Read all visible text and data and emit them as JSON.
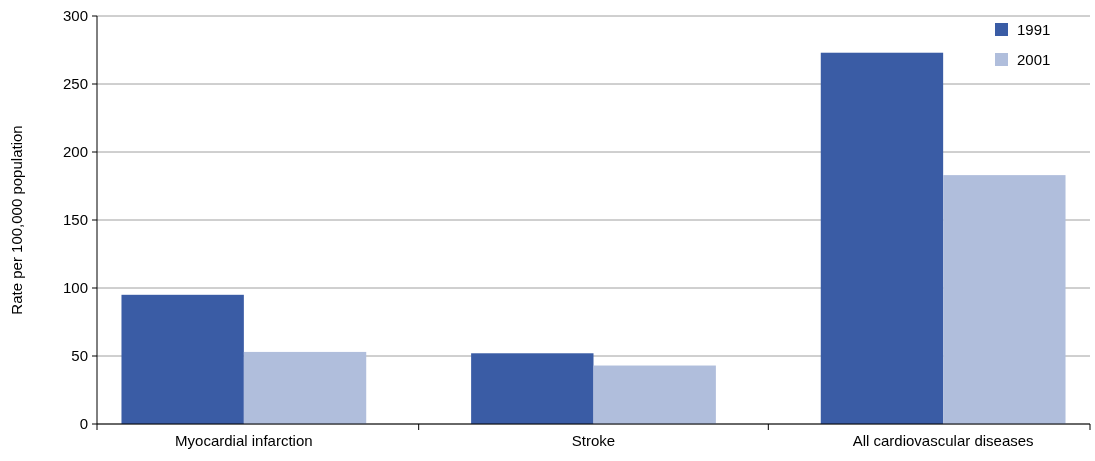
{
  "chart_data": {
    "type": "bar",
    "ylabel": "Rate per 100,000 population",
    "categories": [
      "Myocardial infarction",
      "Stroke",
      "All cardiovascular diseases"
    ],
    "series": [
      {
        "name": "1991",
        "color": "#3a5ca5",
        "values": [
          95,
          52,
          273
        ]
      },
      {
        "name": "2001",
        "color": "#b0bedc",
        "values": [
          53,
          43,
          183
        ]
      }
    ],
    "ylim": [
      0,
      300
    ],
    "yticks": [
      0,
      50,
      100,
      150,
      200,
      250,
      300
    ],
    "grid": "y",
    "legend": "top right"
  }
}
